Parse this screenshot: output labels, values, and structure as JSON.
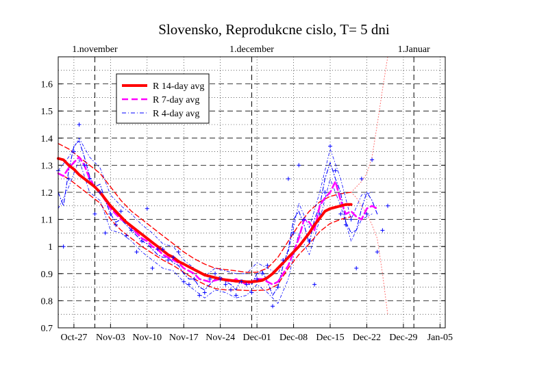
{
  "chart_data": {
    "type": "line",
    "title": "Slovensko, Reprodukcne cislo, T= 5 dni",
    "xlabel": "",
    "ylabel": "",
    "x_start": "Oct-24",
    "x_end": "Jan-06",
    "xlim_days": [
      0,
      74
    ],
    "ylim": [
      0.7,
      1.7
    ],
    "grid": true,
    "legend_position": "top-left",
    "x_tick_labels": [
      {
        "label": "Oct-27",
        "day": 3
      },
      {
        "label": "Nov-03",
        "day": 10
      },
      {
        "label": "Nov-10",
        "day": 17
      },
      {
        "label": "Nov-17",
        "day": 24
      },
      {
        "label": "Nov-24",
        "day": 31
      },
      {
        "label": "Dec-01",
        "day": 38
      },
      {
        "label": "Dec-08",
        "day": 45
      },
      {
        "label": "Dec-15",
        "day": 52
      },
      {
        "label": "Dec-22",
        "day": 59
      },
      {
        "label": "Dec-29",
        "day": 66
      },
      {
        "label": "Jan-05",
        "day": 73
      }
    ],
    "month_labels": [
      {
        "label": "1.november",
        "day": 7
      },
      {
        "label": "1.december",
        "day": 37
      },
      {
        "label": "1.Januar",
        "day": 68
      }
    ],
    "y_ticks": [
      0.7,
      0.8,
      0.9,
      1,
      1.1,
      1.2,
      1.3,
      1.4,
      1.5,
      1.6
    ],
    "y_tick_labels": [
      "0.7",
      "0.8",
      "0.9",
      "1",
      "1.1",
      "1.2",
      "1.3",
      "1.4",
      "1.5",
      "1.6"
    ],
    "series": [
      {
        "name": "R 14-day avg",
        "color": "#ff0000",
        "style": "solid-thick",
        "x": [
          0,
          1,
          2,
          3,
          4,
          5,
          6,
          7,
          8,
          9,
          10,
          11,
          12,
          13,
          14,
          15,
          16,
          17,
          18,
          19,
          20,
          21,
          22,
          23,
          24,
          25,
          26,
          27,
          28,
          29,
          30,
          31,
          32,
          33,
          34,
          35,
          36,
          37,
          38,
          39,
          40,
          41,
          42,
          43,
          44,
          45,
          46,
          47,
          48,
          49,
          50,
          51,
          52,
          53,
          54,
          55,
          56
        ],
        "y": [
          1.325,
          1.32,
          1.3,
          1.285,
          1.265,
          1.25,
          1.235,
          1.22,
          1.2,
          1.175,
          1.15,
          1.13,
          1.11,
          1.09,
          1.075,
          1.06,
          1.045,
          1.03,
          1.015,
          1.0,
          0.985,
          0.97,
          0.96,
          0.945,
          0.935,
          0.925,
          0.915,
          0.905,
          0.895,
          0.89,
          0.885,
          0.88,
          0.877,
          0.875,
          0.872,
          0.872,
          0.87,
          0.87,
          0.872,
          0.875,
          0.885,
          0.9,
          0.92,
          0.94,
          0.96,
          0.98,
          1.0,
          1.025,
          1.05,
          1.08,
          1.105,
          1.13,
          1.14,
          1.145,
          1.15,
          1.155,
          1.155
        ]
      },
      {
        "name": "R 14-day upper",
        "color": "#ff0000",
        "style": "dashed",
        "x": [
          0,
          2,
          4,
          6,
          8,
          10,
          12,
          14,
          16,
          18,
          20,
          22,
          24,
          26,
          28,
          30,
          32,
          34,
          36,
          38,
          40,
          42,
          44,
          46,
          48,
          50,
          52,
          54,
          56
        ],
        "y": [
          1.38,
          1.36,
          1.33,
          1.3,
          1.27,
          1.22,
          1.17,
          1.13,
          1.1,
          1.07,
          1.04,
          1.01,
          0.98,
          0.955,
          0.935,
          0.92,
          0.915,
          0.91,
          0.905,
          0.905,
          0.92,
          0.96,
          1.02,
          1.08,
          1.13,
          1.165,
          1.185,
          1.195,
          1.2
        ]
      },
      {
        "name": "R 14-day lower",
        "color": "#ff0000",
        "style": "dashed",
        "x": [
          0,
          2,
          4,
          6,
          8,
          10,
          12,
          14,
          16,
          18,
          20,
          22,
          24,
          26,
          28,
          30,
          32,
          34,
          36,
          38,
          40,
          42,
          44,
          46,
          48,
          50,
          52,
          54,
          56
        ],
        "y": [
          1.27,
          1.25,
          1.22,
          1.19,
          1.16,
          1.1,
          1.06,
          1.03,
          1.0,
          0.975,
          0.95,
          0.93,
          0.905,
          0.88,
          0.86,
          0.845,
          0.84,
          0.84,
          0.838,
          0.838,
          0.84,
          0.86,
          0.92,
          0.97,
          1.01,
          1.055,
          1.085,
          1.1,
          1.11
        ]
      },
      {
        "name": "R 7-day avg",
        "color": "#ff00ff",
        "style": "dashed-thick",
        "x": [
          0,
          1,
          2,
          3,
          4,
          5,
          6,
          7,
          8,
          9,
          10,
          11,
          12,
          13,
          14,
          15,
          16,
          17,
          18,
          19,
          20,
          21,
          22,
          23,
          24,
          25,
          26,
          27,
          28,
          29,
          30,
          31,
          32,
          33,
          34,
          35,
          36,
          37,
          38,
          39,
          40,
          41,
          42,
          43,
          44,
          45,
          46,
          47,
          48,
          49,
          50,
          51,
          52,
          53,
          54,
          55,
          56,
          57,
          58,
          59,
          60,
          61
        ],
        "y": [
          1.27,
          1.26,
          1.29,
          1.31,
          1.33,
          1.3,
          1.25,
          1.22,
          1.2,
          1.17,
          1.14,
          1.12,
          1.1,
          1.09,
          1.07,
          1.05,
          1.03,
          1.02,
          1.0,
          0.99,
          0.97,
          0.96,
          0.95,
          0.94,
          0.92,
          0.91,
          0.9,
          0.88,
          0.875,
          0.87,
          0.875,
          0.88,
          0.875,
          0.87,
          0.88,
          0.87,
          0.86,
          0.87,
          0.88,
          0.88,
          0.87,
          0.86,
          0.87,
          0.9,
          0.93,
          0.98,
          1.03,
          1.1,
          1.09,
          1.06,
          1.15,
          1.18,
          1.2,
          1.24,
          1.17,
          1.12,
          1.13,
          1.11,
          1.1,
          1.14,
          1.15,
          1.14
        ]
      },
      {
        "name": "R 4-day avg",
        "color": "#0000ff",
        "style": "dashdot",
        "x": [
          0,
          1,
          2,
          3,
          4,
          5,
          6,
          7,
          8,
          9,
          10,
          11,
          12,
          13,
          14,
          15,
          16,
          17,
          18,
          19,
          20,
          21,
          22,
          23,
          24,
          25,
          26,
          27,
          28,
          29,
          30,
          31,
          32,
          33,
          34,
          35,
          36,
          37,
          38,
          39,
          40,
          41,
          42,
          43,
          44,
          45,
          46,
          47,
          48,
          49,
          50,
          51,
          52,
          53,
          54,
          55,
          56,
          57,
          58,
          59,
          60,
          61
        ],
        "y": [
          1.2,
          1.15,
          1.28,
          1.37,
          1.39,
          1.33,
          1.26,
          1.22,
          1.23,
          1.17,
          1.12,
          1.09,
          1.1,
          1.08,
          1.06,
          1.04,
          1.02,
          1.01,
          0.99,
          0.97,
          0.96,
          0.96,
          0.94,
          0.93,
          0.9,
          0.88,
          0.88,
          0.85,
          0.84,
          0.86,
          0.88,
          0.89,
          0.87,
          0.86,
          0.84,
          0.88,
          0.86,
          0.86,
          0.9,
          0.91,
          0.87,
          0.82,
          0.85,
          0.93,
          0.99,
          1.1,
          1.13,
          1.08,
          1.01,
          1.1,
          1.15,
          1.25,
          1.31,
          1.25,
          1.2,
          1.09,
          1.05,
          1.06,
          1.14,
          1.2,
          1.17,
          1.12
        ]
      },
      {
        "name": "R 4-day upper",
        "color": "#0000ff",
        "style": "dashdot-thin",
        "x": [
          0,
          2,
          4,
          6,
          8,
          10,
          12,
          14,
          16,
          18,
          20,
          22,
          24,
          26,
          28,
          30,
          32,
          34,
          36,
          38,
          40,
          42,
          44,
          46,
          48,
          50,
          52,
          54,
          56,
          58,
          60
        ],
        "y": [
          1.28,
          1.33,
          1.4,
          1.33,
          1.29,
          1.19,
          1.15,
          1.12,
          1.08,
          1.05,
          1.01,
          1.0,
          0.95,
          0.92,
          0.89,
          0.92,
          0.91,
          0.9,
          0.9,
          0.94,
          0.92,
          0.9,
          0.98,
          1.16,
          1.07,
          1.2,
          1.36,
          1.25,
          1.1,
          1.19,
          1.2
        ]
      },
      {
        "name": "R 4-day lower",
        "color": "#0000ff",
        "style": "dashdot-thin",
        "x": [
          0,
          2,
          4,
          6,
          8,
          10,
          12,
          14,
          16,
          18,
          20,
          22,
          24,
          26,
          28,
          30,
          32,
          34,
          36,
          38,
          40,
          42,
          44,
          46,
          48,
          50,
          52,
          54,
          56,
          58,
          60
        ],
        "y": [
          1.14,
          1.22,
          1.32,
          1.2,
          1.17,
          1.06,
          1.05,
          1.02,
          0.98,
          0.95,
          0.92,
          0.91,
          0.87,
          0.84,
          0.81,
          0.84,
          0.83,
          0.81,
          0.82,
          0.86,
          0.83,
          0.79,
          0.88,
          1.05,
          0.97,
          1.1,
          1.25,
          1.15,
          1.02,
          1.1,
          1.12
        ]
      },
      {
        "name": "R forecast upper",
        "color": "#ff6666",
        "style": "dotted",
        "x": [
          56,
          57,
          58,
          59,
          60,
          61,
          62,
          63
        ],
        "y": [
          1.2,
          1.22,
          1.24,
          1.27,
          1.33,
          1.45,
          1.58,
          1.7
        ]
      },
      {
        "name": "R forecast lower",
        "color": "#ff6666",
        "style": "dotted",
        "x": [
          56,
          57,
          58,
          59,
          60,
          61,
          62,
          63
        ],
        "y": [
          1.2,
          1.18,
          1.15,
          1.12,
          1.08,
          1.03,
          0.9,
          0.75
        ]
      }
    ],
    "scatter_points": {
      "name": "R daily",
      "color": "#0000ff",
      "marker": "+",
      "x": [
        0,
        1,
        2,
        3,
        4,
        5,
        6,
        7,
        8,
        9,
        10,
        11,
        12,
        13,
        14,
        15,
        16,
        17,
        18,
        19,
        20,
        21,
        22,
        23,
        24,
        25,
        26,
        27,
        28,
        29,
        30,
        31,
        32,
        33,
        34,
        35,
        36,
        37,
        38,
        39,
        40,
        41,
        42,
        43,
        44,
        45,
        46,
        47,
        48,
        49,
        50,
        51,
        52,
        53,
        54,
        55,
        56,
        57,
        58,
        59,
        60,
        61,
        62,
        63
      ],
      "y": [
        1.28,
        1.0,
        1.25,
        1.35,
        1.45,
        1.3,
        1.25,
        1.12,
        1.2,
        1.05,
        1.12,
        1.08,
        1.13,
        1.04,
        1.06,
        0.98,
        1.02,
        1.14,
        0.92,
        0.99,
        0.99,
        0.95,
        0.96,
        0.98,
        0.87,
        0.86,
        0.88,
        0.82,
        0.83,
        0.88,
        0.9,
        0.88,
        0.86,
        0.84,
        0.82,
        0.87,
        0.86,
        0.83,
        0.88,
        0.9,
        0.93,
        0.78,
        0.85,
        0.95,
        1.25,
        1.05,
        1.3,
        1.1,
        1.02,
        0.86,
        1.12,
        1.2,
        1.37,
        1.28,
        1.12,
        1.08,
        1.1,
        0.92,
        1.25,
        1.12,
        1.32,
        0.98,
        1.06,
        1.15
      ]
    }
  }
}
